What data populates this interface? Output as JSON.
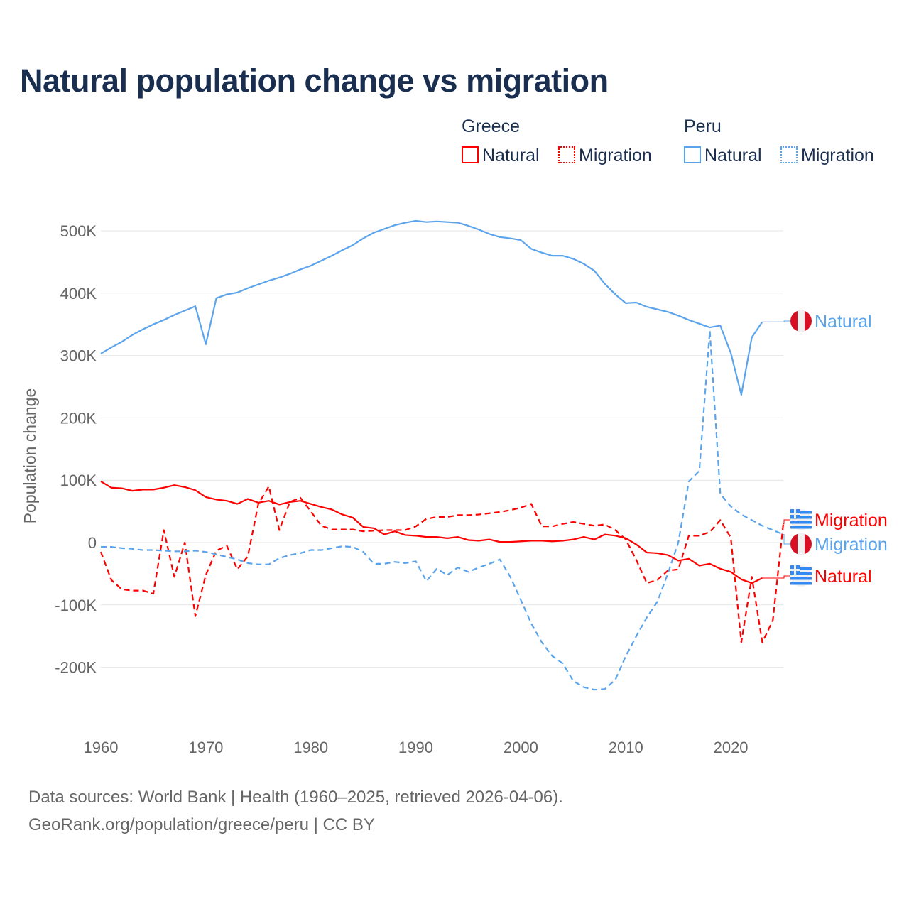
{
  "title": "Natural population change vs migration",
  "legend": {
    "groups": [
      {
        "name": "Greece",
        "items": [
          "Natural",
          "Migration"
        ],
        "color": "#ff0000"
      },
      {
        "name": "Peru",
        "items": [
          "Natural",
          "Migration"
        ],
        "color": "#5ba4ec"
      }
    ]
  },
  "footer": {
    "line1": "Data sources: World Bank | Health (1960–2025, retrieved 2026-04-06).",
    "line2": "GeoRank.org/population/greece/peru | CC BY"
  },
  "chart_data": {
    "type": "line",
    "title": "Natural population change vs migration",
    "xlabel": "",
    "ylabel": "Population change",
    "xlim": [
      1960,
      2025
    ],
    "ylim": [
      -250000,
      550000
    ],
    "x_ticks": [
      1960,
      1970,
      1980,
      1990,
      2000,
      2010,
      2020
    ],
    "x_tick_labels": [
      "1960",
      "1970",
      "1980",
      "1990",
      "2000",
      "2010",
      "2020"
    ],
    "y_ticks": [
      -200000,
      -100000,
      0,
      100000,
      200000,
      300000,
      400000,
      500000
    ],
    "y_tick_labels": [
      "-200K",
      "-100K",
      "0",
      "100K",
      "200K",
      "300K",
      "400K",
      "500K"
    ],
    "grid": true,
    "x_start": 1960,
    "series": [
      {
        "name": "Peru Natural",
        "end_label": "Natural",
        "color": "#5ba4ec",
        "dash": false,
        "flag": "peru",
        "unit": "thousands",
        "values": [
          303,
          313,
          322,
          333,
          342,
          350,
          357,
          365,
          372,
          379,
          318,
          392,
          398,
          401,
          408,
          414,
          420,
          425,
          431,
          438,
          444,
          452,
          460,
          469,
          477,
          488,
          497,
          503,
          509,
          513,
          516,
          514,
          515,
          514,
          513,
          508,
          502,
          495,
          490,
          488,
          485,
          471,
          465,
          460,
          460,
          455,
          447,
          436,
          415,
          398,
          384,
          385,
          378,
          374,
          370,
          364,
          357,
          351,
          345,
          348,
          304,
          237,
          329,
          354
        ]
      },
      {
        "name": "Greece Migration",
        "end_label": "Migration",
        "color": "#ff0000",
        "dash": true,
        "flag": "greece",
        "unit": "thousands",
        "values": [
          -15,
          -60,
          -75,
          -77,
          -77,
          -82,
          20,
          -55,
          0,
          -118,
          -52,
          -13,
          -5,
          -43,
          -22,
          62,
          90,
          20,
          65,
          72,
          50,
          27,
          21,
          21,
          21,
          18,
          19,
          20,
          20,
          20,
          26,
          38,
          41,
          41,
          44,
          44,
          45,
          47,
          49,
          52,
          56,
          62,
          26,
          26,
          30,
          33,
          30,
          27,
          29,
          20,
          5,
          -28,
          -65,
          -60,
          -45,
          -43,
          11,
          11,
          17,
          36,
          8,
          -160,
          -55,
          -160,
          -125,
          30
        ]
      },
      {
        "name": "Peru Migration",
        "end_label": "Migration",
        "color": "#5ba4ec",
        "dash": true,
        "flag": "peru",
        "unit": "thousands",
        "values": [
          -7,
          -7,
          -9,
          -10,
          -12,
          -12,
          -13,
          -14,
          -14,
          -13,
          -15,
          -19,
          -23,
          -27,
          -33,
          -35,
          -35,
          -25,
          -20,
          -17,
          -12,
          -12,
          -9,
          -6,
          -7,
          -15,
          -34,
          -34,
          -31,
          -33,
          -30,
          -62,
          -42,
          -52,
          -40,
          -47,
          -40,
          -34,
          -27,
          -55,
          -92,
          -130,
          -160,
          -182,
          -194,
          -222,
          -232,
          -236,
          -235,
          -220,
          -182,
          -150,
          -120,
          -95,
          -50,
          0,
          98,
          115,
          340,
          78,
          58,
          45,
          36,
          27,
          20,
          13
        ]
      },
      {
        "name": "Greece Natural",
        "end_label": "Natural",
        "color": "#ff0000",
        "dash": false,
        "flag": "greece",
        "unit": "thousands",
        "values": [
          98,
          88,
          87,
          83,
          85,
          85,
          88,
          92,
          89,
          84,
          73,
          69,
          67,
          62,
          70,
          64,
          67,
          61,
          65,
          67,
          62,
          57,
          53,
          45,
          40,
          25,
          23,
          13,
          18,
          12,
          11,
          9,
          9,
          7,
          9,
          4,
          3,
          5,
          1,
          1,
          2,
          3,
          3,
          2,
          3,
          5,
          9,
          5,
          13,
          11,
          7,
          -3,
          -16,
          -17,
          -20,
          -29,
          -26,
          -37,
          -34,
          -42,
          -47,
          -59,
          -65,
          -57
        ]
      }
    ]
  }
}
